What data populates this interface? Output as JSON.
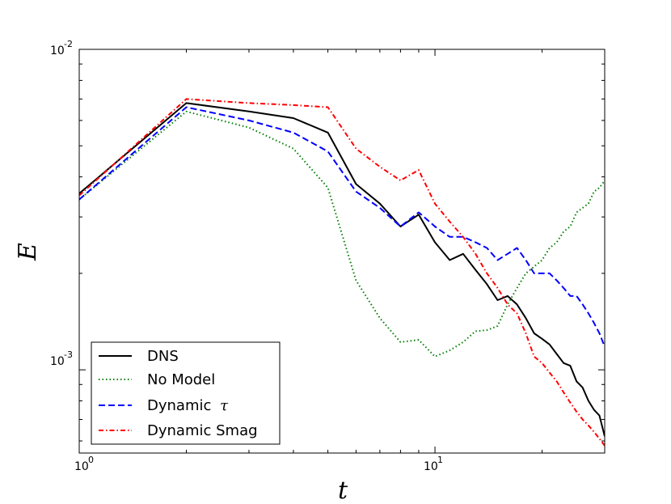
{
  "chart_data": {
    "type": "line",
    "title": "",
    "xlabel": "t",
    "ylabel": "E",
    "xscale": "log",
    "yscale": "log",
    "xlim": [
      1,
      30
    ],
    "ylim": [
      0.00055,
      0.01
    ],
    "xticks": [
      {
        "value": 1,
        "base": "10",
        "exp": "0"
      },
      {
        "value": 10,
        "base": "10",
        "exp": "1"
      }
    ],
    "yticks": [
      {
        "value": 0.001,
        "base": "10",
        "exp": "-3"
      },
      {
        "value": 0.01,
        "base": "10",
        "exp": "-2"
      }
    ],
    "legend_position": "lower-left",
    "series": [
      {
        "name": "DNS",
        "label_prefix": "DNS",
        "label_math": "",
        "color": "#000000",
        "dash": "solid",
        "x": [
          1,
          2,
          3,
          4,
          5,
          6,
          7,
          8,
          9,
          10,
          11,
          12,
          13,
          14,
          15,
          16,
          17,
          18,
          19,
          20,
          21,
          22,
          23,
          24,
          25,
          26,
          27,
          28,
          29,
          30
        ],
        "y": [
          0.00355,
          0.0068,
          0.0064,
          0.0061,
          0.0055,
          0.0038,
          0.0033,
          0.0028,
          0.00305,
          0.0025,
          0.0022,
          0.0023,
          0.00205,
          0.00185,
          0.00165,
          0.0017,
          0.0016,
          0.00145,
          0.0013,
          0.00125,
          0.0012,
          0.00112,
          0.00105,
          0.00103,
          0.00092,
          0.00088,
          0.0008,
          0.00075,
          0.00072,
          0.00062
        ]
      },
      {
        "name": "No Model",
        "label_prefix": "No Model",
        "label_math": "",
        "color": "#007f00",
        "dash": "dotted",
        "x": [
          1,
          2,
          3,
          4,
          5,
          6,
          7,
          8,
          9,
          10,
          11,
          12,
          13,
          14,
          15,
          16,
          17,
          18,
          19,
          20,
          21,
          22,
          23,
          24,
          25,
          26,
          27,
          28,
          29,
          30
        ],
        "y": [
          0.0034,
          0.0064,
          0.0057,
          0.0049,
          0.0037,
          0.0019,
          0.00145,
          0.00122,
          0.00124,
          0.0011,
          0.00115,
          0.00122,
          0.00132,
          0.00133,
          0.00137,
          0.0016,
          0.0018,
          0.002,
          0.0021,
          0.0022,
          0.0024,
          0.0025,
          0.0027,
          0.0028,
          0.0031,
          0.0032,
          0.0033,
          0.0036,
          0.0037,
          0.0039
        ]
      },
      {
        "name": "Dynamic τ",
        "label_prefix": "Dynamic ",
        "label_math": "τ",
        "color": "#0000ff",
        "dash": "dashed",
        "x": [
          1,
          2,
          3,
          4,
          5,
          6,
          7,
          8,
          9,
          10,
          11,
          12,
          13,
          14,
          15,
          16,
          17,
          18,
          19,
          20,
          21,
          22,
          23,
          24,
          25,
          26,
          27,
          28,
          29,
          30
        ],
        "y": [
          0.0034,
          0.0066,
          0.006,
          0.0055,
          0.0048,
          0.0036,
          0.0032,
          0.0028,
          0.0031,
          0.0028,
          0.0026,
          0.0026,
          0.0025,
          0.0024,
          0.0022,
          0.0023,
          0.0024,
          0.0022,
          0.002,
          0.002,
          0.002,
          0.0019,
          0.0018,
          0.0017,
          0.0017,
          0.0016,
          0.0015,
          0.0014,
          0.0013,
          0.00118
        ]
      },
      {
        "name": "Dynamic Smag",
        "label_prefix": "Dynamic Smag",
        "label_math": "",
        "color": "#ff0000",
        "dash": "dashdot",
        "x": [
          1,
          2,
          3,
          4,
          5,
          6,
          7,
          8,
          9,
          10,
          11,
          12,
          13,
          14,
          15,
          16,
          17,
          18,
          19,
          20,
          21,
          22,
          23,
          24,
          25,
          26,
          27,
          28,
          29,
          30
        ],
        "y": [
          0.0035,
          0.007,
          0.0068,
          0.0067,
          0.0066,
          0.0049,
          0.0043,
          0.0039,
          0.0042,
          0.0033,
          0.0029,
          0.0026,
          0.0023,
          0.002,
          0.0018,
          0.0016,
          0.0015,
          0.0013,
          0.0011,
          0.00105,
          0.00098,
          0.00092,
          0.00085,
          0.00079,
          0.00074,
          0.0007,
          0.00067,
          0.00064,
          0.00061,
          0.00058
        ]
      }
    ]
  }
}
